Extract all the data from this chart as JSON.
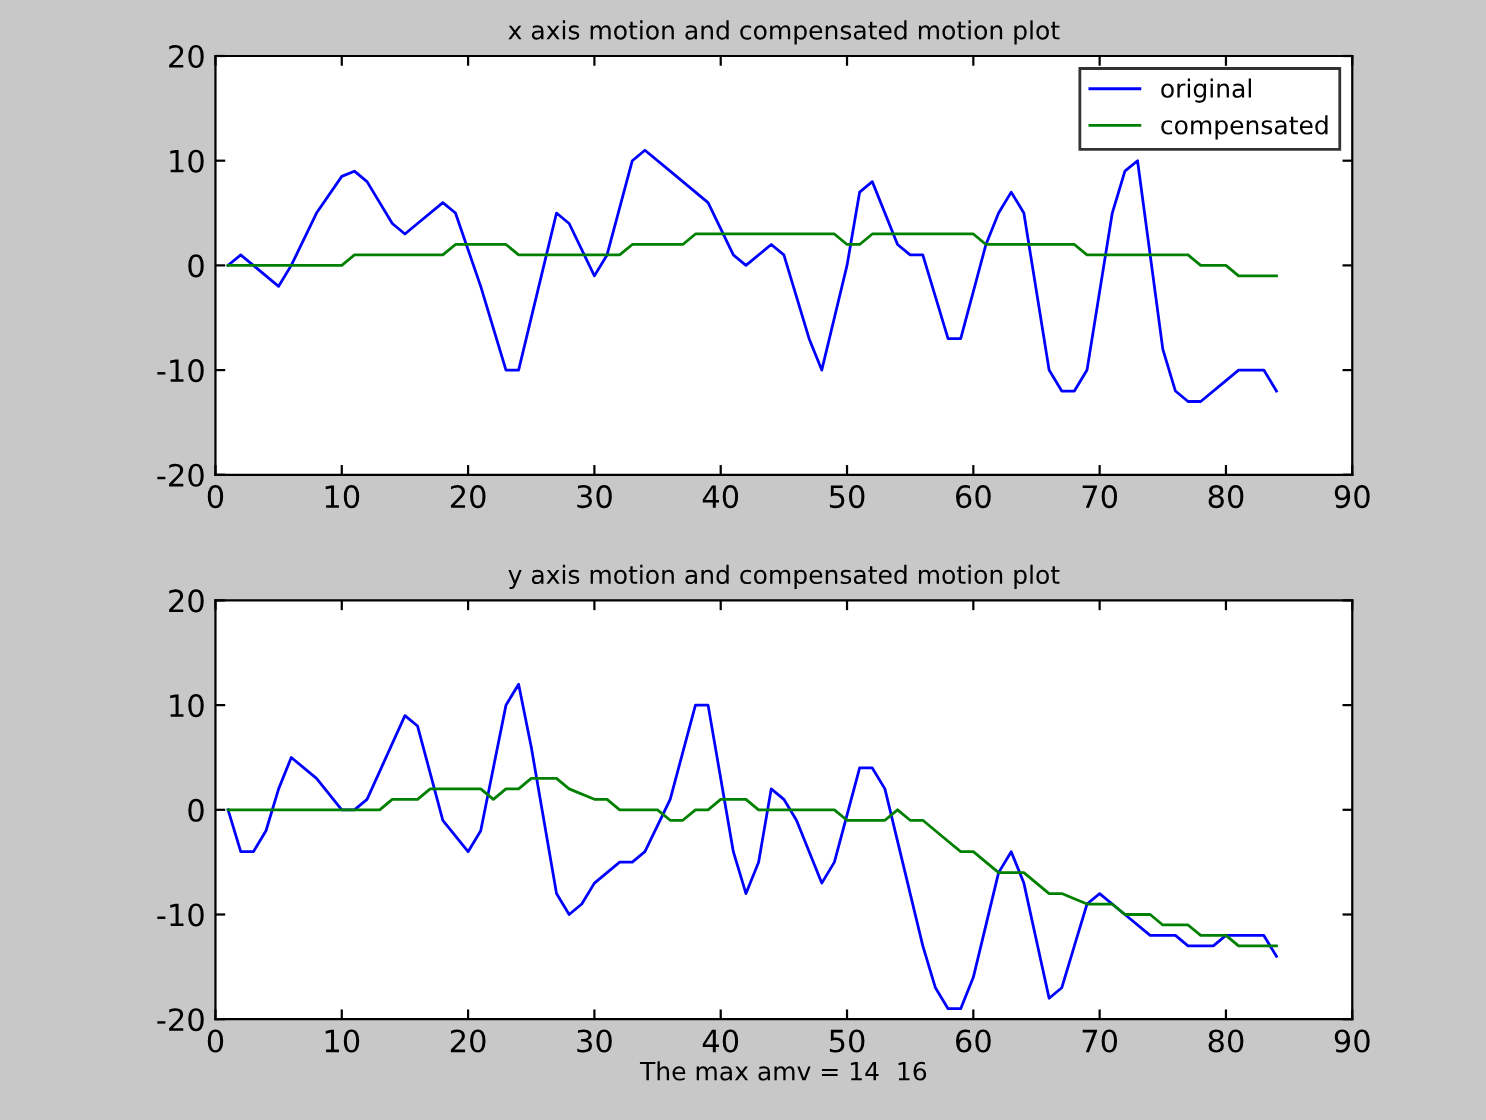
{
  "chart_data": [
    {
      "type": "line",
      "title": "x axis motion and compensated motion plot",
      "xlim": [
        0,
        90
      ],
      "ylim": [
        -20,
        20
      ],
      "xticks": [
        0,
        10,
        20,
        30,
        40,
        50,
        60,
        70,
        80,
        90
      ],
      "yticks": [
        -20,
        -10,
        0,
        10,
        20
      ],
      "legend": "top right",
      "grid": false,
      "series": [
        {
          "name": "original",
          "color": "#0000ff",
          "x": [
            1,
            2,
            3,
            5,
            6,
            8,
            10,
            11,
            12,
            14,
            15,
            16,
            18,
            19,
            21,
            23,
            24,
            26,
            27,
            28,
            30,
            31,
            33,
            34,
            36,
            38,
            39,
            41,
            42,
            44,
            45,
            47,
            48,
            50,
            51,
            52,
            54,
            55,
            56,
            58,
            59,
            61,
            62,
            63,
            64,
            66,
            67,
            68,
            69,
            71,
            72,
            73,
            75,
            76,
            77,
            78,
            80,
            81,
            83,
            84
          ],
          "values": [
            0,
            1,
            0,
            -2,
            0,
            5,
            8.5,
            9,
            8,
            4,
            3,
            4,
            6,
            5,
            -2,
            -10,
            -10,
            0,
            5,
            4,
            -1,
            1,
            10,
            11,
            9,
            7,
            6,
            1,
            0,
            2,
            1,
            -7,
            -10,
            0,
            7,
            8,
            2,
            1,
            1,
            -7,
            -7,
            2,
            5,
            7,
            5,
            -10,
            -12,
            -12,
            -10,
            5,
            9,
            10,
            -8,
            -12,
            -13,
            -13,
            -11,
            -10,
            -10,
            -12
          ]
        },
        {
          "name": "compensated",
          "color": "#008000",
          "x": [
            1,
            10,
            11,
            18,
            19,
            23,
            24,
            32,
            33,
            37,
            38,
            49,
            50,
            51,
            52,
            60,
            61,
            68,
            69,
            77,
            78,
            80,
            81,
            84
          ],
          "values": [
            0,
            0,
            1,
            1,
            2,
            2,
            1,
            1,
            2,
            2,
            3,
            3,
            2,
            2,
            3,
            3,
            2,
            2,
            1,
            1,
            0,
            0,
            -1,
            -1
          ]
        }
      ]
    },
    {
      "type": "line",
      "title": "y axis motion and compensated motion plot",
      "xlabel": "The max amv = 14  16",
      "xlim": [
        0,
        90
      ],
      "ylim": [
        -20,
        20
      ],
      "xticks": [
        0,
        10,
        20,
        30,
        40,
        50,
        60,
        70,
        80,
        90
      ],
      "yticks": [
        -20,
        -10,
        0,
        10,
        20
      ],
      "grid": false,
      "series": [
        {
          "color": "#0000ff",
          "x": [
            1,
            2,
            3,
            4,
            5,
            6,
            8,
            10,
            11,
            12,
            15,
            16,
            18,
            20,
            21,
            23,
            24,
            25,
            27,
            28,
            29,
            30,
            31,
            32,
            33,
            34,
            36,
            38,
            39,
            41,
            42,
            43,
            44,
            45,
            46,
            48,
            49,
            51,
            52,
            53,
            56,
            57,
            58,
            59,
            60,
            62,
            63,
            64,
            66,
            67,
            68,
            69,
            70,
            72,
            74,
            76,
            77,
            78,
            79,
            80,
            83,
            84
          ],
          "values": [
            0,
            -4,
            -4,
            -2,
            2,
            5,
            3,
            0,
            0,
            1,
            9,
            8,
            -1,
            -4,
            -2,
            10,
            12,
            6,
            -8,
            -10,
            -9,
            -7,
            -6,
            -5,
            -5,
            -4,
            1,
            10,
            10,
            -4,
            -8,
            -5,
            2,
            1,
            -1,
            -7,
            -5,
            4,
            4,
            2,
            -13,
            -17,
            -19,
            -19,
            -16,
            -6,
            -4,
            -7,
            -18,
            -17,
            -13,
            -9,
            -8,
            -10,
            -12,
            -12,
            -13,
            -13,
            -13,
            -12,
            -12,
            -14
          ]
        },
        {
          "color": "#008000",
          "x": [
            1,
            13,
            14,
            16,
            17,
            21,
            22,
            23,
            24,
            25,
            27,
            28,
            30,
            31,
            32,
            35,
            36,
            37,
            38,
            39,
            40,
            42,
            43,
            49,
            50,
            53,
            54,
            55,
            56,
            58,
            59,
            60,
            61,
            62,
            64,
            65,
            66,
            67,
            69,
            71,
            72,
            74,
            75,
            77,
            78,
            80,
            81,
            84
          ],
          "values": [
            0,
            0,
            1,
            1,
            2,
            2,
            1,
            2,
            2,
            3,
            3,
            2,
            1,
            1,
            0,
            0,
            -1,
            -1,
            0,
            0,
            1,
            1,
            0,
            0,
            -1,
            -1,
            0,
            -1,
            -1,
            -3,
            -4,
            -4,
            -5,
            -6,
            -6,
            -7,
            -8,
            -8,
            -9,
            -9,
            -10,
            -10,
            -11,
            -11,
            -12,
            -12,
            -13,
            -13
          ]
        }
      ]
    }
  ]
}
